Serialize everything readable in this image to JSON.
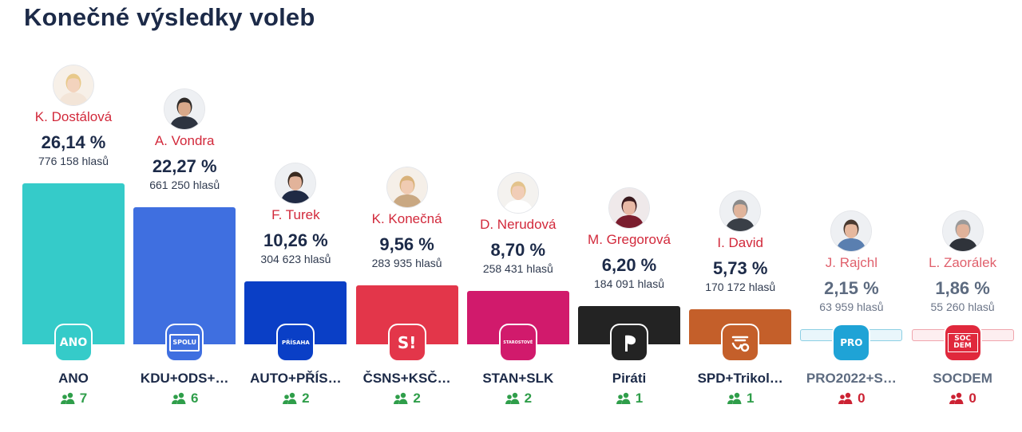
{
  "page": {
    "title": "Konečné výsledky voleb"
  },
  "chart_data": {
    "type": "bar",
    "title": "Konečné výsledky voleb",
    "ylim": [
      0,
      26.14
    ],
    "value_unit": "%",
    "categories": [
      "ANO",
      "KDU+ODS+…",
      "AUTO+PŘÍS…",
      "ČSNS+KSČ…",
      "STAN+SLK",
      "Piráti",
      "SPD+Trikol…",
      "PRO2022+S…",
      "SOCDEM"
    ],
    "values": [
      26.14,
      22.27,
      10.26,
      9.56,
      8.7,
      6.2,
      5.73,
      2.15,
      1.86
    ],
    "bars": [
      {
        "party": "ANO",
        "candidate": "K. Dostálová",
        "percent_label": "26,14 %",
        "value": 26.14,
        "votes_label": "776 158 hlasů",
        "seats": "7",
        "seats_color": "#2f9e4a",
        "color": "#35cbc9",
        "logo_text": "ANO",
        "logo_icon": "ano-logo-icon",
        "avatar_icon": "candidate-photo-dostalova",
        "passed": true,
        "hair": "#e8c98a",
        "skin": "#f3d3bd",
        "suit": "#f3e5d8",
        "bg": "#f7f0e8"
      },
      {
        "party": "KDU+ODS+…",
        "candidate": "A. Vondra",
        "percent_label": "22,27 %",
        "value": 22.27,
        "votes_label": "661 250 hlasů",
        "seats": "6",
        "seats_color": "#2f9e4a",
        "color": "#3f6fe0",
        "logo_text": "SPOLU",
        "logo_icon": "spolu-logo-icon",
        "avatar_icon": "candidate-photo-vondra",
        "passed": true,
        "hair": "#2e2a28",
        "skin": "#d9a98a",
        "suit": "#2e3440",
        "bg": "#eef0f3"
      },
      {
        "party": "AUTO+PŘÍS…",
        "candidate": "F. Turek",
        "percent_label": "10,26 %",
        "value": 10.26,
        "votes_label": "304 623 hlasů",
        "seats": "2",
        "seats_color": "#2f9e4a",
        "color": "#0a3fc6",
        "logo_text": "PŘÍSAHA",
        "logo_icon": "prisaha-logo-icon",
        "avatar_icon": "candidate-photo-turek",
        "passed": true,
        "hair": "#3a2a20",
        "skin": "#e2b39a",
        "suit": "#1f2a44",
        "bg": "#eef0f3"
      },
      {
        "party": "ČSNS+KSČ…",
        "candidate": "K. Konečná",
        "percent_label": "9,56 %",
        "value": 9.56,
        "votes_label": "283 935 hlasů",
        "seats": "2",
        "seats_color": "#2f9e4a",
        "color": "#e3364a",
        "logo_text": "S!",
        "logo_icon": "stacilo-logo-icon",
        "avatar_icon": "candidate-photo-konecna",
        "passed": true,
        "hair": "#d9b27a",
        "skin": "#f0cbb2",
        "suit": "#c9a882",
        "bg": "#f5efe8"
      },
      {
        "party": "STAN+SLK",
        "candidate": "D. Nerudová",
        "percent_label": "8,70 %",
        "value": 8.7,
        "votes_label": "258 431 hlasů",
        "seats": "2",
        "seats_color": "#2f9e4a",
        "color": "#d11a6c",
        "logo_text": "STAROSTOVÉ",
        "logo_icon": "starostove-logo-icon",
        "avatar_icon": "candidate-photo-nerudova",
        "passed": true,
        "hair": "#e3c38c",
        "skin": "#f1cdb7",
        "suit": "#ffffff",
        "bg": "#f4f2ef"
      },
      {
        "party": "Piráti",
        "candidate": "M. Gregorová",
        "percent_label": "6,20 %",
        "value": 6.2,
        "votes_label": "184 091 hlasů",
        "seats": "1",
        "seats_color": "#2f9e4a",
        "color": "#232323",
        "logo_text": "",
        "logo_icon": "pirati-logo-icon",
        "avatar_icon": "candidate-photo-gregorova",
        "passed": true,
        "hair": "#3a1a1e",
        "skin": "#e8b9a6",
        "suit": "#7a1d2e",
        "bg": "#efe9ea"
      },
      {
        "party": "SPD+Trikol…",
        "candidate": "I. David",
        "percent_label": "5,73 %",
        "value": 5.73,
        "votes_label": "170 172 hlasů",
        "seats": "1",
        "seats_color": "#2f9e4a",
        "color": "#c45f2a",
        "logo_text": "",
        "logo_icon": "spd-logo-icon",
        "avatar_icon": "candidate-photo-david",
        "passed": true,
        "hair": "#8a8a8a",
        "skin": "#e0b49b",
        "suit": "#3a3f47",
        "bg": "#eef0f3"
      },
      {
        "party": "PRO2022+S…",
        "candidate": "J. Rajchl",
        "percent_label": "2,15 %",
        "value": 2.15,
        "votes_label": "63 959 hlasů",
        "seats": "0",
        "seats_color": "#cc2233",
        "color": "#e9f6fb",
        "border_color": "#8ccfe4",
        "logo_text": "PRO",
        "logo_icon": "pro-logo-icon",
        "avatar_icon": "candidate-photo-rajchl",
        "passed": false,
        "hair": "#4a3a30",
        "skin": "#e6b89e",
        "suit": "#5a7fb0",
        "bg": "#eef0f3"
      },
      {
        "party": "SOCDEM",
        "candidate": "L. Zaorálek",
        "percent_label": "1,86 %",
        "value": 1.86,
        "votes_label": "55 260 hlasů",
        "seats": "0",
        "seats_color": "#cc2233",
        "color": "#fdeef0",
        "border_color": "#f0a5ad",
        "logo_text": "SOC DEM",
        "logo_icon": "socdem-logo-icon",
        "avatar_icon": "candidate-photo-zaoralek",
        "passed": false,
        "hair": "#9a9a9a",
        "skin": "#e0b29a",
        "suit": "#2f333a",
        "bg": "#eef0f3"
      }
    ]
  }
}
